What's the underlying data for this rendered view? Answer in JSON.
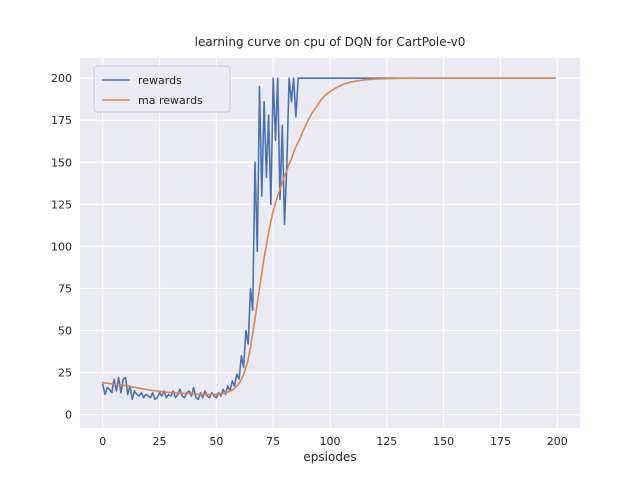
{
  "figure": {
    "title": "learning curve on cpu of DQN for CartPole-v0",
    "xlabel": "epsiodes"
  },
  "chart_data": {
    "type": "line",
    "title": "learning curve on cpu of DQN for CartPole-v0",
    "xlabel": "epsiodes",
    "ylabel": "",
    "xlim": [
      -10,
      210
    ],
    "ylim": [
      -8,
      212
    ],
    "xticks": [
      0,
      25,
      50,
      75,
      100,
      125,
      150,
      175,
      200
    ],
    "yticks": [
      0,
      25,
      50,
      75,
      100,
      125,
      150,
      175,
      200
    ],
    "grid": true,
    "legend_position": "upper left",
    "background": "#eaeaf2",
    "grid_color": "#ffffff",
    "legend_face": "#eaeaf2",
    "legend_edge": "#cccccc",
    "series": [
      {
        "name": "rewards",
        "color": "#4c72b0",
        "points": [
          [
            0,
            18
          ],
          [
            1,
            12
          ],
          [
            2,
            16
          ],
          [
            3,
            15
          ],
          [
            4,
            13
          ],
          [
            5,
            21
          ],
          [
            6,
            14
          ],
          [
            7,
            22
          ],
          [
            8,
            13
          ],
          [
            9,
            21
          ],
          [
            10,
            22
          ],
          [
            11,
            12
          ],
          [
            12,
            17
          ],
          [
            13,
            9
          ],
          [
            14,
            14
          ],
          [
            15,
            12
          ],
          [
            16,
            11
          ],
          [
            17,
            13
          ],
          [
            18,
            10
          ],
          [
            19,
            12
          ],
          [
            20,
            11
          ],
          [
            21,
            10
          ],
          [
            22,
            13
          ],
          [
            23,
            9
          ],
          [
            24,
            10
          ],
          [
            25,
            13
          ],
          [
            26,
            11
          ],
          [
            27,
            14
          ],
          [
            28,
            10
          ],
          [
            29,
            12
          ],
          [
            30,
            11
          ],
          [
            31,
            14
          ],
          [
            32,
            10
          ],
          [
            33,
            12
          ],
          [
            34,
            15
          ],
          [
            35,
            11
          ],
          [
            36,
            10
          ],
          [
            37,
            13
          ],
          [
            38,
            14
          ],
          [
            39,
            11
          ],
          [
            40,
            16
          ],
          [
            41,
            10
          ],
          [
            42,
            9
          ],
          [
            43,
            13
          ],
          [
            44,
            10
          ],
          [
            45,
            14
          ],
          [
            46,
            11
          ],
          [
            47,
            10
          ],
          [
            48,
            13
          ],
          [
            49,
            11
          ],
          [
            50,
            10
          ],
          [
            51,
            13
          ],
          [
            52,
            11
          ],
          [
            53,
            15
          ],
          [
            54,
            12
          ],
          [
            55,
            17
          ],
          [
            56,
            14
          ],
          [
            57,
            20
          ],
          [
            58,
            17
          ],
          [
            59,
            24
          ],
          [
            60,
            21
          ],
          [
            61,
            35
          ],
          [
            62,
            28
          ],
          [
            63,
            50
          ],
          [
            64,
            42
          ],
          [
            65,
            75
          ],
          [
            66,
            62
          ],
          [
            67,
            150
          ],
          [
            68,
            97
          ],
          [
            69,
            195
          ],
          [
            70,
            130
          ],
          [
            71,
            186
          ],
          [
            72,
            141
          ],
          [
            73,
            178
          ],
          [
            74,
            125
          ],
          [
            75,
            200
          ],
          [
            76,
            163
          ],
          [
            77,
            200
          ],
          [
            78,
            128
          ],
          [
            79,
            172
          ],
          [
            80,
            113
          ],
          [
            81,
            148
          ],
          [
            82,
            200
          ],
          [
            83,
            186
          ],
          [
            84,
            200
          ],
          [
            85,
            177
          ],
          [
            86,
            200
          ],
          [
            87,
            200
          ],
          [
            90,
            200
          ],
          [
            95,
            200
          ],
          [
            100,
            200
          ],
          [
            110,
            200
          ],
          [
            125,
            200
          ],
          [
            150,
            200
          ],
          [
            175,
            200
          ],
          [
            199,
            200
          ]
        ]
      },
      {
        "name": "ma rewards",
        "color": "#dd8452",
        "points": [
          [
            0,
            19
          ],
          [
            3,
            18.4
          ],
          [
            6,
            18
          ],
          [
            10,
            17.2
          ],
          [
            14,
            16.2
          ],
          [
            18,
            15.2
          ],
          [
            22,
            14.3
          ],
          [
            26,
            13.6
          ],
          [
            30,
            13.1
          ],
          [
            34,
            12.7
          ],
          [
            38,
            12.4
          ],
          [
            42,
            12.1
          ],
          [
            46,
            12
          ],
          [
            50,
            12
          ],
          [
            53,
            12.6
          ],
          [
            56,
            13.8
          ],
          [
            58,
            15.5
          ],
          [
            60,
            18.5
          ],
          [
            61,
            21
          ],
          [
            62,
            24
          ],
          [
            63,
            28
          ],
          [
            64,
            33
          ],
          [
            65,
            40
          ],
          [
            66,
            48
          ],
          [
            67,
            57
          ],
          [
            68,
            66
          ],
          [
            69,
            75
          ],
          [
            70,
            84
          ],
          [
            71,
            93
          ],
          [
            72,
            101
          ],
          [
            73,
            108
          ],
          [
            74,
            115
          ],
          [
            75,
            121
          ],
          [
            76,
            126
          ],
          [
            77,
            130
          ],
          [
            78,
            134
          ],
          [
            79,
            138
          ],
          [
            80,
            142
          ],
          [
            81,
            145
          ],
          [
            82,
            149
          ],
          [
            83,
            152
          ],
          [
            84,
            156
          ],
          [
            85,
            159
          ],
          [
            86,
            162
          ],
          [
            87,
            165
          ],
          [
            88,
            168
          ],
          [
            89,
            171
          ],
          [
            90,
            174
          ],
          [
            92,
            179
          ],
          [
            94,
            183
          ],
          [
            96,
            187
          ],
          [
            98,
            190
          ],
          [
            100,
            192
          ],
          [
            103,
            194.5
          ],
          [
            106,
            196.5
          ],
          [
            110,
            198
          ],
          [
            115,
            199
          ],
          [
            120,
            199.5
          ],
          [
            130,
            199.9
          ],
          [
            140,
            200
          ],
          [
            150,
            200
          ],
          [
            175,
            200
          ],
          [
            199,
            200
          ]
        ]
      }
    ]
  }
}
